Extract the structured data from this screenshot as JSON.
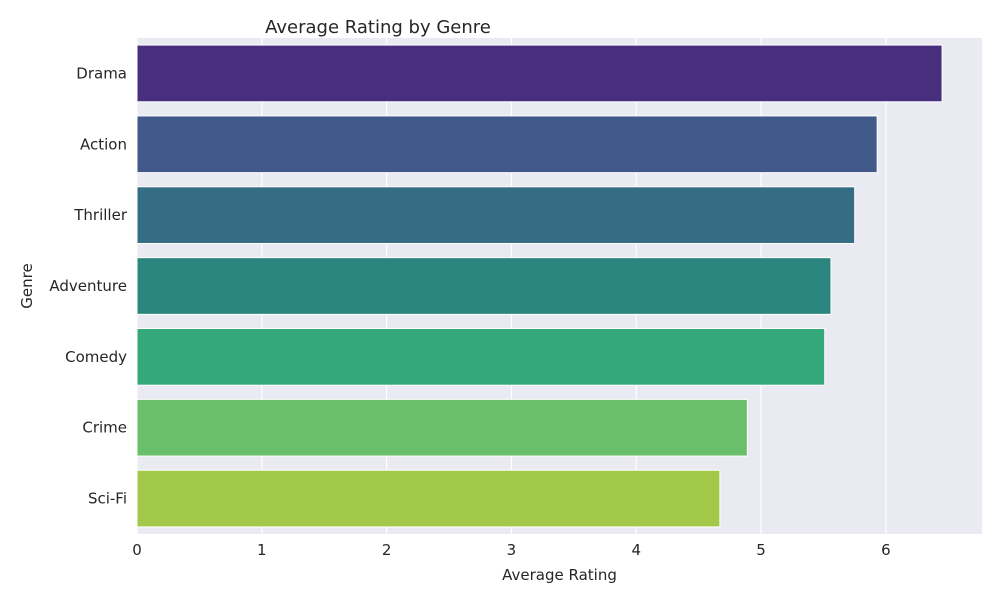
{
  "chart_data": {
    "type": "bar",
    "orientation": "horizontal",
    "title": "Average Rating by Genre",
    "xlabel": "Average Rating",
    "ylabel": "Genre",
    "categories": [
      "Drama",
      "Action",
      "Thriller",
      "Adventure",
      "Comedy",
      "Crime",
      "Sci-Fi"
    ],
    "values": [
      6.45,
      5.93,
      5.75,
      5.56,
      5.51,
      4.89,
      4.67
    ],
    "colors": [
      "#472f7d",
      "#41588b",
      "#356d84",
      "#2b867f",
      "#34a87b",
      "#6abf6b",
      "#a2c949"
    ],
    "xlim": [
      0,
      6.77
    ],
    "xticks": [
      0,
      1,
      2,
      3,
      4,
      5,
      6
    ],
    "grid": true,
    "background": "#eaeaf2"
  }
}
